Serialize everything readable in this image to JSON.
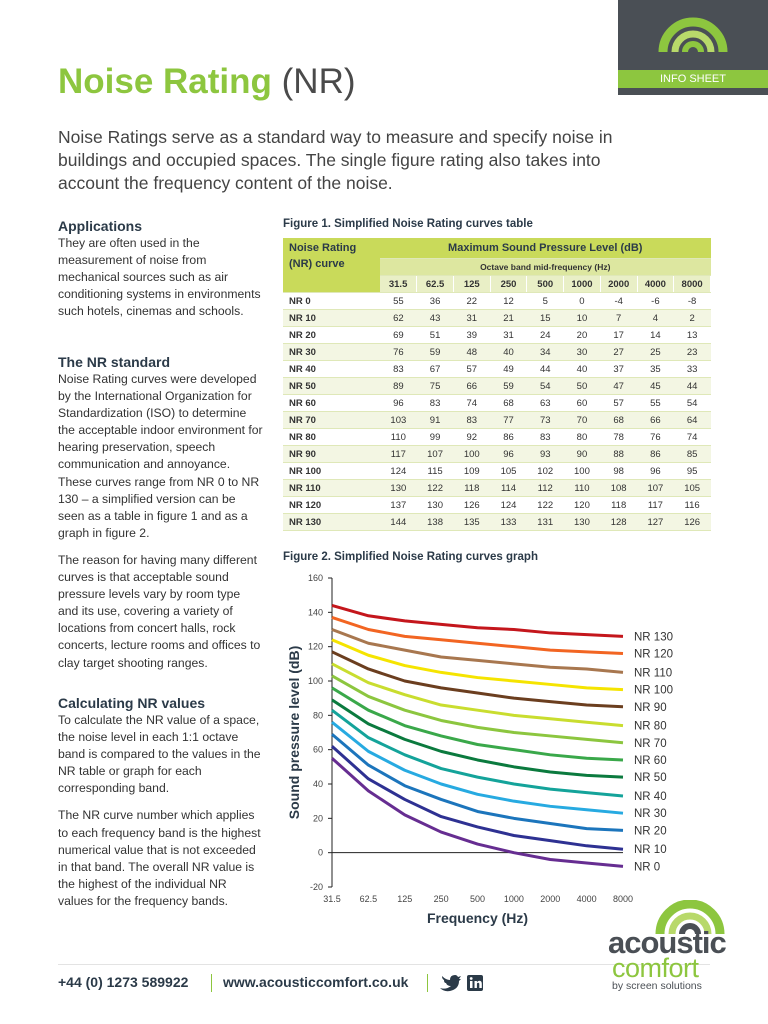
{
  "header": {
    "title": "Noise Rating",
    "title_suffix": "(NR)",
    "badge": "INFO SHEET"
  },
  "intro": "Noise Ratings serve as a standard way to measure and specify noise in buildings and occupied spaces. The single figure rating also takes into account the frequency content of the noise.",
  "sidebar": {
    "applications": {
      "heading": "Applications",
      "paragraphs": [
        "They are often used in the measurement of noise from mechanical sources such as air conditioning systems in environments such hotels, cinemas and schools."
      ]
    },
    "nr_standard": {
      "heading": "The NR standard",
      "paragraphs": [
        "Noise Rating curves were developed by the International Organization for Standardization (ISO) to determine the acceptable indoor environment for hearing preservation, speech communication and annoyance. These curves range from NR 0 to NR 130 – a simplified version can be seen as a table in figure 1 and as a graph in figure 2.",
        "The reason for having many different curves is that acceptable sound pressure levels vary by room type and its use, covering a variety of locations from concert halls, rock concerts, lecture rooms and offices to clay target shooting ranges."
      ]
    },
    "calculating": {
      "heading": "Calculating NR values",
      "paragraphs": [
        "To calculate the NR value of a space, the noise level in each 1:1 octave band is compared to the values in the NR table or graph for each corresponding band.",
        "The NR curve number which applies to each frequency band is the highest numerical value that is not exceeded in that band. The overall NR value is the highest of the individual NR values for the frequency bands."
      ]
    }
  },
  "figure1": {
    "caption": "Figure 1. Simplified Noise Rating curves table",
    "table": {
      "corner": "Noise Rating (NR) curve",
      "group_header": "Maximum Sound Pressure Level (dB)",
      "sub_header": "Octave band mid-frequency (Hz)",
      "columns": [
        "31.5",
        "62.5",
        "125",
        "250",
        "500",
        "1000",
        "2000",
        "4000",
        "8000"
      ],
      "rows": [
        [
          "NR 0",
          55,
          36,
          22,
          12,
          5,
          0,
          -4,
          -6,
          -8
        ],
        [
          "NR 10",
          62,
          43,
          31,
          21,
          15,
          10,
          7,
          4,
          2
        ],
        [
          "NR 20",
          69,
          51,
          39,
          31,
          24,
          20,
          17,
          14,
          13
        ],
        [
          "NR 30",
          76,
          59,
          48,
          40,
          34,
          30,
          27,
          25,
          23
        ],
        [
          "NR 40",
          83,
          67,
          57,
          49,
          44,
          40,
          37,
          35,
          33
        ],
        [
          "NR 50",
          89,
          75,
          66,
          59,
          54,
          50,
          47,
          45,
          44
        ],
        [
          "NR 60",
          96,
          83,
          74,
          68,
          63,
          60,
          57,
          55,
          54
        ],
        [
          "NR 70",
          103,
          91,
          83,
          77,
          73,
          70,
          68,
          66,
          64
        ],
        [
          "NR 80",
          110,
          99,
          92,
          86,
          83,
          80,
          78,
          76,
          74
        ],
        [
          "NR 90",
          117,
          107,
          100,
          96,
          93,
          90,
          88,
          86,
          85
        ],
        [
          "NR 100",
          124,
          115,
          109,
          105,
          102,
          100,
          98,
          96,
          95
        ],
        [
          "NR 110",
          130,
          122,
          118,
          114,
          112,
          110,
          108,
          107,
          105
        ],
        [
          "NR 120",
          137,
          130,
          126,
          124,
          122,
          120,
          118,
          117,
          116
        ],
        [
          "NR 130",
          144,
          138,
          135,
          133,
          131,
          130,
          128,
          127,
          126
        ]
      ]
    }
  },
  "chart_data": {
    "type": "line",
    "title": "Figure 2. Simplified Noise Rating curves graph",
    "x_label": "Frequency (Hz)",
    "y_label": "Sound pressure level (dB)",
    "categories": [
      "31.5",
      "62.5",
      "125",
      "250",
      "500",
      "1000",
      "2000",
      "4000",
      "8000"
    ],
    "ylim": [
      -20,
      160
    ],
    "yticks": [
      -20,
      0,
      20,
      40,
      60,
      80,
      100,
      120,
      140,
      160
    ],
    "grid": false,
    "series": [
      {
        "name": "NR 0",
        "color": "#662d91",
        "values": [
          55,
          36,
          22,
          12,
          5,
          0,
          -4,
          -6,
          -8
        ]
      },
      {
        "name": "NR 10",
        "color": "#2e3192",
        "values": [
          62,
          43,
          31,
          21,
          15,
          10,
          7,
          4,
          2
        ]
      },
      {
        "name": "NR 20",
        "color": "#1c75bc",
        "values": [
          69,
          51,
          39,
          31,
          24,
          20,
          17,
          14,
          13
        ]
      },
      {
        "name": "NR 30",
        "color": "#27aae1",
        "values": [
          76,
          59,
          48,
          40,
          34,
          30,
          27,
          25,
          23
        ]
      },
      {
        "name": "NR 40",
        "color": "#14a39a",
        "values": [
          83,
          67,
          57,
          49,
          44,
          40,
          37,
          35,
          33
        ]
      },
      {
        "name": "NR 50",
        "color": "#0b7a3e",
        "values": [
          89,
          75,
          66,
          59,
          54,
          50,
          47,
          45,
          44
        ]
      },
      {
        "name": "NR 60",
        "color": "#3aa84a",
        "values": [
          96,
          83,
          74,
          68,
          63,
          60,
          57,
          55,
          54
        ]
      },
      {
        "name": "NR 70",
        "color": "#8cc63f",
        "values": [
          103,
          91,
          83,
          77,
          73,
          70,
          68,
          66,
          64
        ]
      },
      {
        "name": "NR 80",
        "color": "#c9dd2f",
        "values": [
          110,
          99,
          92,
          86,
          83,
          80,
          78,
          76,
          74
        ]
      },
      {
        "name": "NR 90",
        "color": "#6b3e1f",
        "values": [
          117,
          107,
          100,
          96,
          93,
          90,
          88,
          86,
          85
        ]
      },
      {
        "name": "NR 100",
        "color": "#f5e400",
        "values": [
          124,
          115,
          109,
          105,
          102,
          100,
          98,
          96,
          95
        ]
      },
      {
        "name": "NR 110",
        "color": "#a8774f",
        "values": [
          130,
          122,
          118,
          114,
          112,
          110,
          108,
          107,
          105
        ]
      },
      {
        "name": "NR 120",
        "color": "#f26522",
        "values": [
          137,
          130,
          126,
          124,
          122,
          120,
          118,
          117,
          116
        ]
      },
      {
        "name": "NR 130",
        "color": "#c4161c",
        "values": [
          144,
          138,
          135,
          133,
          131,
          130,
          128,
          127,
          126
        ]
      }
    ]
  },
  "footer": {
    "phone": "+44 (0) 1273 589922",
    "url": "www.acousticcomfort.co.uk",
    "logo_word1": "acoustic",
    "logo_word2": "comfort",
    "logo_tagline": "by screen solutions"
  }
}
